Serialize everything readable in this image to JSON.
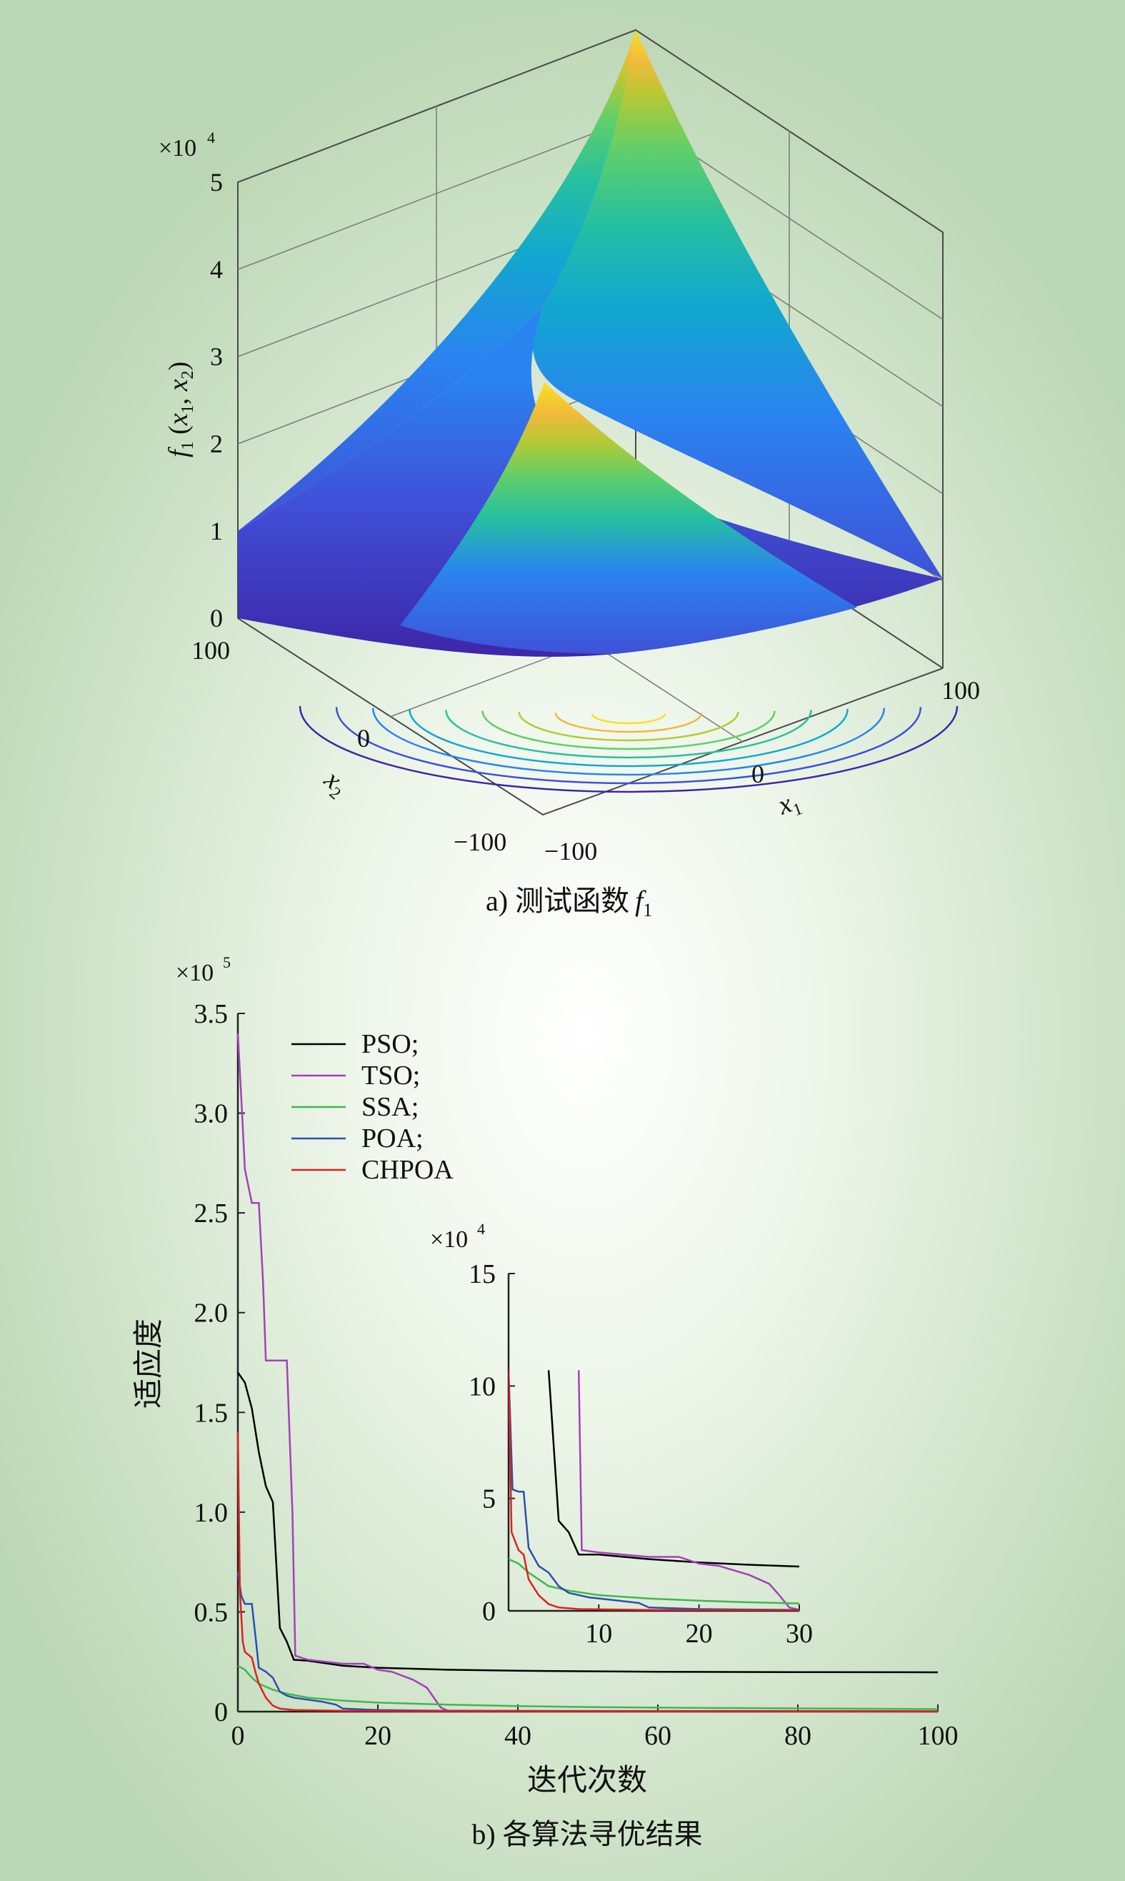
{
  "chart_data": [
    {
      "type": "surface",
      "panel_label": "a)",
      "caption_text": "测试函数",
      "caption_var": "f",
      "caption_sub": "1",
      "z_multiplier": "×10",
      "z_exponent": "4",
      "zlabel": {
        "f": "f",
        "sub1": "1",
        "open": " (",
        "x1": "x",
        "s1": "1",
        "comma": ", ",
        "x2": "x",
        "s2": "2",
        "close": ")"
      },
      "x1label": {
        "var": "x",
        "sub": "1"
      },
      "x2label": {
        "var": "x",
        "sub": "2"
      },
      "x1_ticks": [
        "−100",
        "0",
        "100"
      ],
      "x2_ticks": [
        "−100",
        "0",
        "100"
      ],
      "z_ticks": [
        "0",
        "1",
        "2",
        "3",
        "4",
        "5"
      ],
      "x1_range": [
        -100,
        100
      ],
      "x2_range": [
        -100,
        100
      ],
      "z_range": [
        0,
        50000
      ],
      "colormap": [
        "#3e26a8",
        "#3f51d8",
        "#2a84f0",
        "#11a8cf",
        "#26c0a0",
        "#5fcf6a",
        "#b5c935",
        "#f0ba3b",
        "#f9e021"
      ]
    },
    {
      "type": "line",
      "panel_label": "b)",
      "caption_text": "各算法寻优结果",
      "xlabel": "迭代次数",
      "ylabel": "适应度",
      "y_multiplier": "×10",
      "y_exponent": "5",
      "xlim": [
        0,
        100
      ],
      "ylim": [
        0,
        350000
      ],
      "x_ticks": [
        "0",
        "20",
        "40",
        "60",
        "80",
        "100"
      ],
      "y_ticks": [
        "0",
        "0.5",
        "1.0",
        "1.5",
        "2.0",
        "2.5",
        "3.0",
        "3.5"
      ],
      "legend_position": "top-left",
      "series": [
        {
          "name": "PSO;",
          "color": "#000000",
          "points": [
            [
              0,
              170000
            ],
            [
              1,
              165000
            ],
            [
              2,
              152000
            ],
            [
              3,
              130000
            ],
            [
              4,
              113000
            ],
            [
              5,
              105000
            ],
            [
              6,
              42000
            ],
            [
              7,
              35000
            ],
            [
              8,
              26000
            ],
            [
              10,
              25500
            ],
            [
              15,
              23000
            ],
            [
              20,
              22000
            ],
            [
              30,
              21000
            ],
            [
              40,
              20500
            ],
            [
              60,
              20000
            ],
            [
              80,
              19800
            ],
            [
              100,
              19700
            ]
          ]
        },
        {
          "name": "TSO;",
          "color": "#a540b8",
          "points": [
            [
              0,
              340000
            ],
            [
              0.6,
              300000
            ],
            [
              1,
              272000
            ],
            [
              2,
              255000
            ],
            [
              3,
              255000
            ],
            [
              3.6,
              215000
            ],
            [
              4,
              176000
            ],
            [
              7,
              176000
            ],
            [
              7.8,
              100000
            ],
            [
              8.2,
              28000
            ],
            [
              10,
              26000
            ],
            [
              15,
              24000
            ],
            [
              18,
              24000
            ],
            [
              20,
              21000
            ],
            [
              22,
              20000
            ],
            [
              25,
              16000
            ],
            [
              27,
              12000
            ],
            [
              28,
              7000
            ],
            [
              29,
              2000
            ],
            [
              30,
              500
            ],
            [
              50,
              200
            ],
            [
              100,
              100
            ]
          ]
        },
        {
          "name": "SSA;",
          "color": "#3fb84a",
          "points": [
            [
              0,
              23000
            ],
            [
              1,
              21000
            ],
            [
              2,
              17000
            ],
            [
              3,
              14000
            ],
            [
              5,
              11000
            ],
            [
              7,
              9000
            ],
            [
              10,
              7000
            ],
            [
              15,
              5500
            ],
            [
              20,
              4500
            ],
            [
              30,
              3500
            ],
            [
              40,
              2800
            ],
            [
              50,
              2300
            ],
            [
              60,
              2000
            ],
            [
              80,
              1600
            ],
            [
              100,
              1300
            ]
          ]
        },
        {
          "name": "POA;",
          "color": "#2c4fb0",
          "points": [
            [
              0,
              70000
            ],
            [
              0.5,
              58000
            ],
            [
              1,
              54000
            ],
            [
              2,
              54000
            ],
            [
              2.6,
              35000
            ],
            [
              3,
              22000
            ],
            [
              4,
              20000
            ],
            [
              5,
              17000
            ],
            [
              6,
              10000
            ],
            [
              7,
              8000
            ],
            [
              8,
              7000
            ],
            [
              10,
              6000
            ],
            [
              12,
              5000
            ],
            [
              14,
              3500
            ],
            [
              15,
              1500
            ],
            [
              20,
              800
            ],
            [
              30,
              400
            ],
            [
              100,
              200
            ]
          ]
        },
        {
          "name": "CHPOA",
          "color": "#e02020",
          "points": [
            [
              0,
              140000
            ],
            [
              0.3,
              60000
            ],
            [
              0.7,
              35000
            ],
            [
              1,
              30000
            ],
            [
              2,
              27000
            ],
            [
              2.5,
              20000
            ],
            [
              3,
              14000
            ],
            [
              4,
              7000
            ],
            [
              5,
              3000
            ],
            [
              6,
              1500
            ],
            [
              8,
              800
            ],
            [
              15,
              400
            ],
            [
              30,
              200
            ],
            [
              100,
              100
            ]
          ]
        }
      ],
      "inset": {
        "y_multiplier": "×10",
        "y_exponent": "4",
        "xlim": [
          1,
          30
        ],
        "ylim": [
          0,
          150000
        ],
        "x_ticks": [
          "10",
          "20",
          "30"
        ],
        "y_ticks": [
          "0",
          "5",
          "10",
          "15"
        ],
        "series": [
          {
            "name": "PSO;",
            "color": "#000000",
            "points": [
              [
                5,
                107000
              ],
              [
                6,
                40000
              ],
              [
                7,
                35000
              ],
              [
                8,
                25000
              ],
              [
                10,
                25000
              ],
              [
                15,
                23000
              ],
              [
                20,
                21500
              ],
              [
                25,
                20500
              ],
              [
                30,
                19700
              ]
            ]
          },
          {
            "name": "TSO;",
            "color": "#a540b8",
            "points": [
              [
                8,
                107000
              ],
              [
                8.3,
                27000
              ],
              [
                10,
                26000
              ],
              [
                15,
                24000
              ],
              [
                18,
                24000
              ],
              [
                20,
                21000
              ],
              [
                22,
                20000
              ],
              [
                25,
                16000
              ],
              [
                27,
                12000
              ],
              [
                28,
                7000
              ],
              [
                29,
                1500
              ],
              [
                30,
                500
              ]
            ]
          },
          {
            "name": "SSA;",
            "color": "#3fb84a",
            "points": [
              [
                1,
                23000
              ],
              [
                2,
                21000
              ],
              [
                3,
                17000
              ],
              [
                4,
                14000
              ],
              [
                5,
                11000
              ],
              [
                7,
                9000
              ],
              [
                10,
                7000
              ],
              [
                15,
                5500
              ],
              [
                20,
                4500
              ],
              [
                25,
                3800
              ],
              [
                30,
                3300
              ]
            ]
          },
          {
            "name": "POA;",
            "color": "#2c4fb0",
            "points": [
              [
                1,
                107000
              ],
              [
                1.4,
                54000
              ],
              [
                2,
                53000
              ],
              [
                2.5,
                53000
              ],
              [
                3,
                28000
              ],
              [
                4,
                20000
              ],
              [
                5,
                17000
              ],
              [
                6,
                11000
              ],
              [
                7,
                8000
              ],
              [
                9,
                6000
              ],
              [
                12,
                4500
              ],
              [
                14,
                3500
              ],
              [
                15,
                1500
              ],
              [
                20,
                800
              ],
              [
                30,
                400
              ]
            ]
          },
          {
            "name": "CHPOA",
            "color": "#e02020",
            "points": [
              [
                1,
                107000
              ],
              [
                1.3,
                35000
              ],
              [
                2,
                27000
              ],
              [
                2.5,
                25000
              ],
              [
                3,
                14000
              ],
              [
                4,
                7000
              ],
              [
                5,
                3000
              ],
              [
                6,
                1500
              ],
              [
                8,
                800
              ],
              [
                15,
                400
              ],
              [
                30,
                200
              ]
            ]
          }
        ]
      }
    }
  ]
}
